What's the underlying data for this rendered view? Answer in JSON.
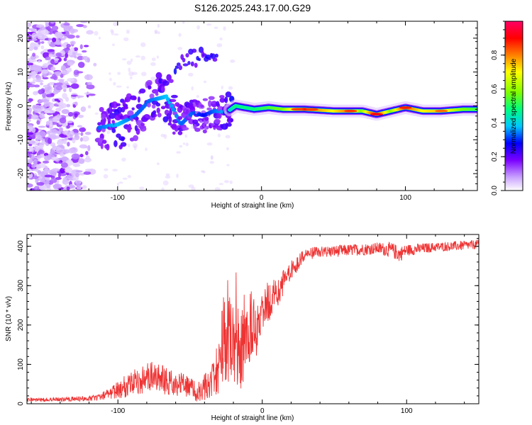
{
  "chart_data": [
    {
      "type": "heatmap",
      "title": "S126.2025.243.17.00.G29",
      "xlabel": "Height of straight line (km)",
      "ylabel": "Frequency (Hz)",
      "xlim": [
        -163,
        150
      ],
      "ylim": [
        -25,
        25
      ],
      "x_ticks": [
        -100,
        0,
        100
      ],
      "y_ticks": [
        -20,
        -10,
        0,
        10,
        20
      ],
      "colorbar": {
        "label": "Normalized spectral amplitude",
        "range": [
          0,
          1
        ],
        "ticks": [
          "0.0",
          "0.2",
          "0.4",
          "0.6",
          "0.8"
        ],
        "colormap": [
          "#ffffff",
          "#c8a0ff",
          "#7a00ff",
          "#0000ff",
          "#00c8ff",
          "#00ff7f",
          "#80ff00",
          "#ffff00",
          "#ff7f00",
          "#ff0000",
          "#ff0066"
        ]
      },
      "ridge_points": [
        {
          "x": -113,
          "f": -6.5,
          "a": 0.35
        },
        {
          "x": -100,
          "f": -5.5,
          "a": 0.4
        },
        {
          "x": -88,
          "f": -3.0,
          "a": 0.35
        },
        {
          "x": -78,
          "f": 1.5,
          "a": 0.35
        },
        {
          "x": -66,
          "f": 2.8,
          "a": 0.4
        },
        {
          "x": -56,
          "f": -5.5,
          "a": 0.35
        },
        {
          "x": -48,
          "f": -2.0,
          "a": 0.35
        },
        {
          "x": -40,
          "f": -2.8,
          "a": 0.3
        },
        {
          "x": -33,
          "f": -1.5,
          "a": 0.35
        },
        {
          "x": -24,
          "f": -1.8,
          "a": 0.4
        },
        {
          "x": -18,
          "f": 0.0,
          "a": 0.5
        },
        {
          "x": -5,
          "f": -1.0,
          "a": 0.5
        },
        {
          "x": 5,
          "f": -0.5,
          "a": 0.55
        },
        {
          "x": 15,
          "f": -1.0,
          "a": 0.6
        },
        {
          "x": 30,
          "f": -1.0,
          "a": 0.85
        },
        {
          "x": 50,
          "f": -1.5,
          "a": 0.7
        },
        {
          "x": 60,
          "f": -1.5,
          "a": 0.8
        },
        {
          "x": 70,
          "f": -1.5,
          "a": 0.6
        },
        {
          "x": 80,
          "f": -2.5,
          "a": 0.9
        },
        {
          "x": 90,
          "f": -1.5,
          "a": 0.6
        },
        {
          "x": 100,
          "f": -0.5,
          "a": 0.85
        },
        {
          "x": 112,
          "f": -1.5,
          "a": 0.7
        },
        {
          "x": 125,
          "f": -1.5,
          "a": 0.75
        },
        {
          "x": 140,
          "f": -1.0,
          "a": 0.6
        },
        {
          "x": 150,
          "f": -1.0,
          "a": 0.55
        }
      ],
      "noise_region": {
        "x_range": [
          -163,
          -115
        ],
        "f_range": [
          -25,
          25
        ]
      }
    },
    {
      "type": "line",
      "title": "",
      "xlabel": "Height of straight line (km)",
      "ylabel": "SNR (10 * v/v)",
      "xlim": [
        -163,
        150
      ],
      "ylim": [
        0,
        430
      ],
      "x_ticks": [
        -100,
        0,
        100
      ],
      "y_ticks": [
        0,
        100,
        200,
        300,
        400
      ],
      "series": [
        {
          "name": "SNR",
          "color": "#ee3333",
          "envelope_x": [
            -163,
            -150,
            -130,
            -115,
            -105,
            -95,
            -85,
            -75,
            -65,
            -55,
            -45,
            -38,
            -32,
            -28,
            -24,
            -20,
            -16,
            -12,
            -8,
            -4,
            0,
            5,
            10,
            15,
            20,
            25,
            30,
            40,
            60,
            80,
            90,
            95,
            100,
            120,
            140,
            150
          ],
          "envelope_mean": [
            10,
            10,
            12,
            15,
            25,
            45,
            60,
            70,
            55,
            50,
            30,
            45,
            80,
            140,
            190,
            160,
            140,
            170,
            210,
            200,
            250,
            260,
            280,
            310,
            340,
            360,
            380,
            385,
            390,
            395,
            390,
            380,
            390,
            398,
            402,
            405
          ],
          "noise": [
            5,
            5,
            6,
            8,
            15,
            30,
            35,
            40,
            35,
            30,
            25,
            40,
            60,
            120,
            150,
            110,
            120,
            110,
            90,
            80,
            60,
            50,
            40,
            30,
            25,
            20,
            15,
            15,
            15,
            15,
            20,
            20,
            15,
            12,
            12,
            12
          ],
          "seed": 126
        }
      ]
    }
  ]
}
